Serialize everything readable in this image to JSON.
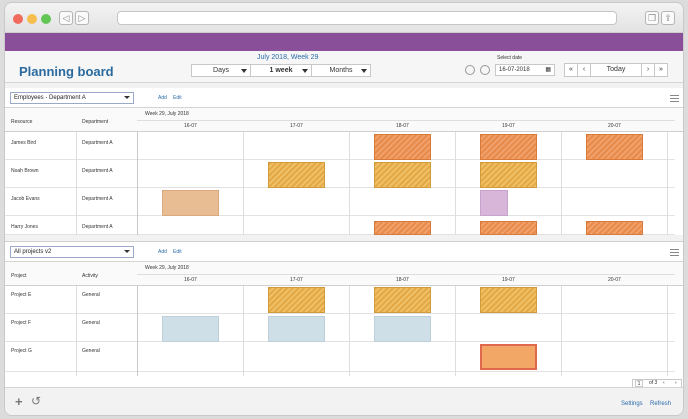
{
  "header": {
    "title": "Planning board",
    "week_title": "July 2018, Week 29",
    "view_unit": "Days",
    "view_range": "1 week",
    "view_scale": "Months",
    "select_date_label": "Select date",
    "date_value": "16-07-2018",
    "today_label": "Today"
  },
  "nav": {
    "first": "«",
    "prev": "‹",
    "next": "›",
    "last": "»"
  },
  "resources_panel": {
    "selector": "Employees - Department A",
    "add": "Add",
    "edit": "Edit",
    "col_resource": "Resource",
    "col_department": "Department",
    "week_label": "Week 29, July 2018",
    "days": [
      "16-07",
      "17-07",
      "18-07",
      "19-07",
      "20-07"
    ],
    "rows": [
      {
        "name": "James Bird",
        "department": "Department A"
      },
      {
        "name": "Noah Brown",
        "department": "Department A"
      },
      {
        "name": "Jacob Evans",
        "department": "Department A"
      },
      {
        "name": "Harry Jones",
        "department": "Department A"
      }
    ]
  },
  "projects_panel": {
    "selector": "All projects v2",
    "add": "Add",
    "edit": "Edit",
    "col_project": "Project",
    "col_activity": "Activity",
    "week_label": "Week 29, July 2018",
    "days": [
      "16-07",
      "17-07",
      "18-07",
      "19-07",
      "20-07"
    ],
    "rows": [
      {
        "name": "Project E",
        "activity": "General"
      },
      {
        "name": "Project F",
        "activity": "General"
      },
      {
        "name": "Project G",
        "activity": "General"
      }
    ]
  },
  "pager": {
    "page": "1",
    "of_label": "of 3"
  },
  "footer": {
    "settings": "Settings",
    "refresh": "Refresh"
  },
  "colors": {
    "brand_bar": "#8a4f99",
    "orange": "#e88a4a",
    "yellow": "#e3a844",
    "peach": "#e8bd94",
    "lilac": "#d7b6da",
    "light_blue": "#cfdfe8",
    "highlight": "#f2a766",
    "link": "#2a6aa8"
  }
}
